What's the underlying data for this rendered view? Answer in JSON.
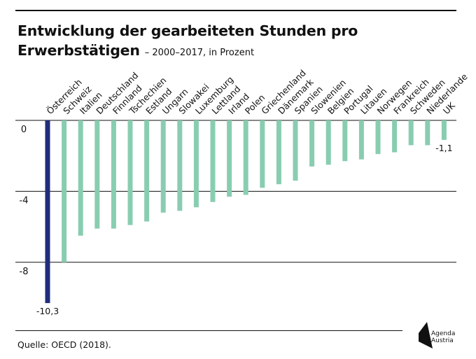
{
  "header": {
    "title_line1": "Entwicklung der gearbeiteten Stunden pro",
    "title_line2": "Erwerbstätigen",
    "subtitle": "– 2000–2017, in Prozent"
  },
  "footer": {
    "source": "Quelle: OECD (2018)."
  },
  "logo": {
    "line1": "Agenda",
    "line2": "Austria"
  },
  "colors": {
    "highlight": "#1f2d7b",
    "bars": "#89cdb1",
    "axis": "#111111"
  },
  "chart_data": {
    "type": "bar",
    "categories": [
      "Österreich",
      "Schweiz",
      "Italien",
      "Deutschland",
      "Finnland",
      "Tschechien",
      "Estland",
      "Ungarn",
      "Slowakei",
      "Luxemburg",
      "Lettland",
      "Irland",
      "Polen",
      "Griechenland",
      "Dänemark",
      "Spanien",
      "Slowenien",
      "Belgien",
      "Portugal",
      "Litauen",
      "Norwegen",
      "Frankreich",
      "Schweden",
      "Niederlande",
      "UK"
    ],
    "values": [
      -10.3,
      -8.0,
      -6.5,
      -6.1,
      -6.1,
      -5.9,
      -5.7,
      -5.2,
      -5.1,
      -4.9,
      -4.6,
      -4.3,
      -4.2,
      -3.8,
      -3.6,
      -3.4,
      -2.6,
      -2.5,
      -2.3,
      -2.2,
      -1.9,
      -1.8,
      -1.4,
      -1.4,
      -1.1
    ],
    "highlight_index": 0,
    "data_labels": [
      {
        "index": 0,
        "text": "-10,3"
      },
      {
        "index": 24,
        "text": "-1,1"
      }
    ],
    "yticks": [
      0,
      -4,
      -8
    ],
    "ytick_labels": [
      "0",
      "-4",
      "-8"
    ],
    "ylim": [
      -10.3,
      0
    ],
    "grid": true,
    "xlabel": "",
    "ylabel": ""
  }
}
